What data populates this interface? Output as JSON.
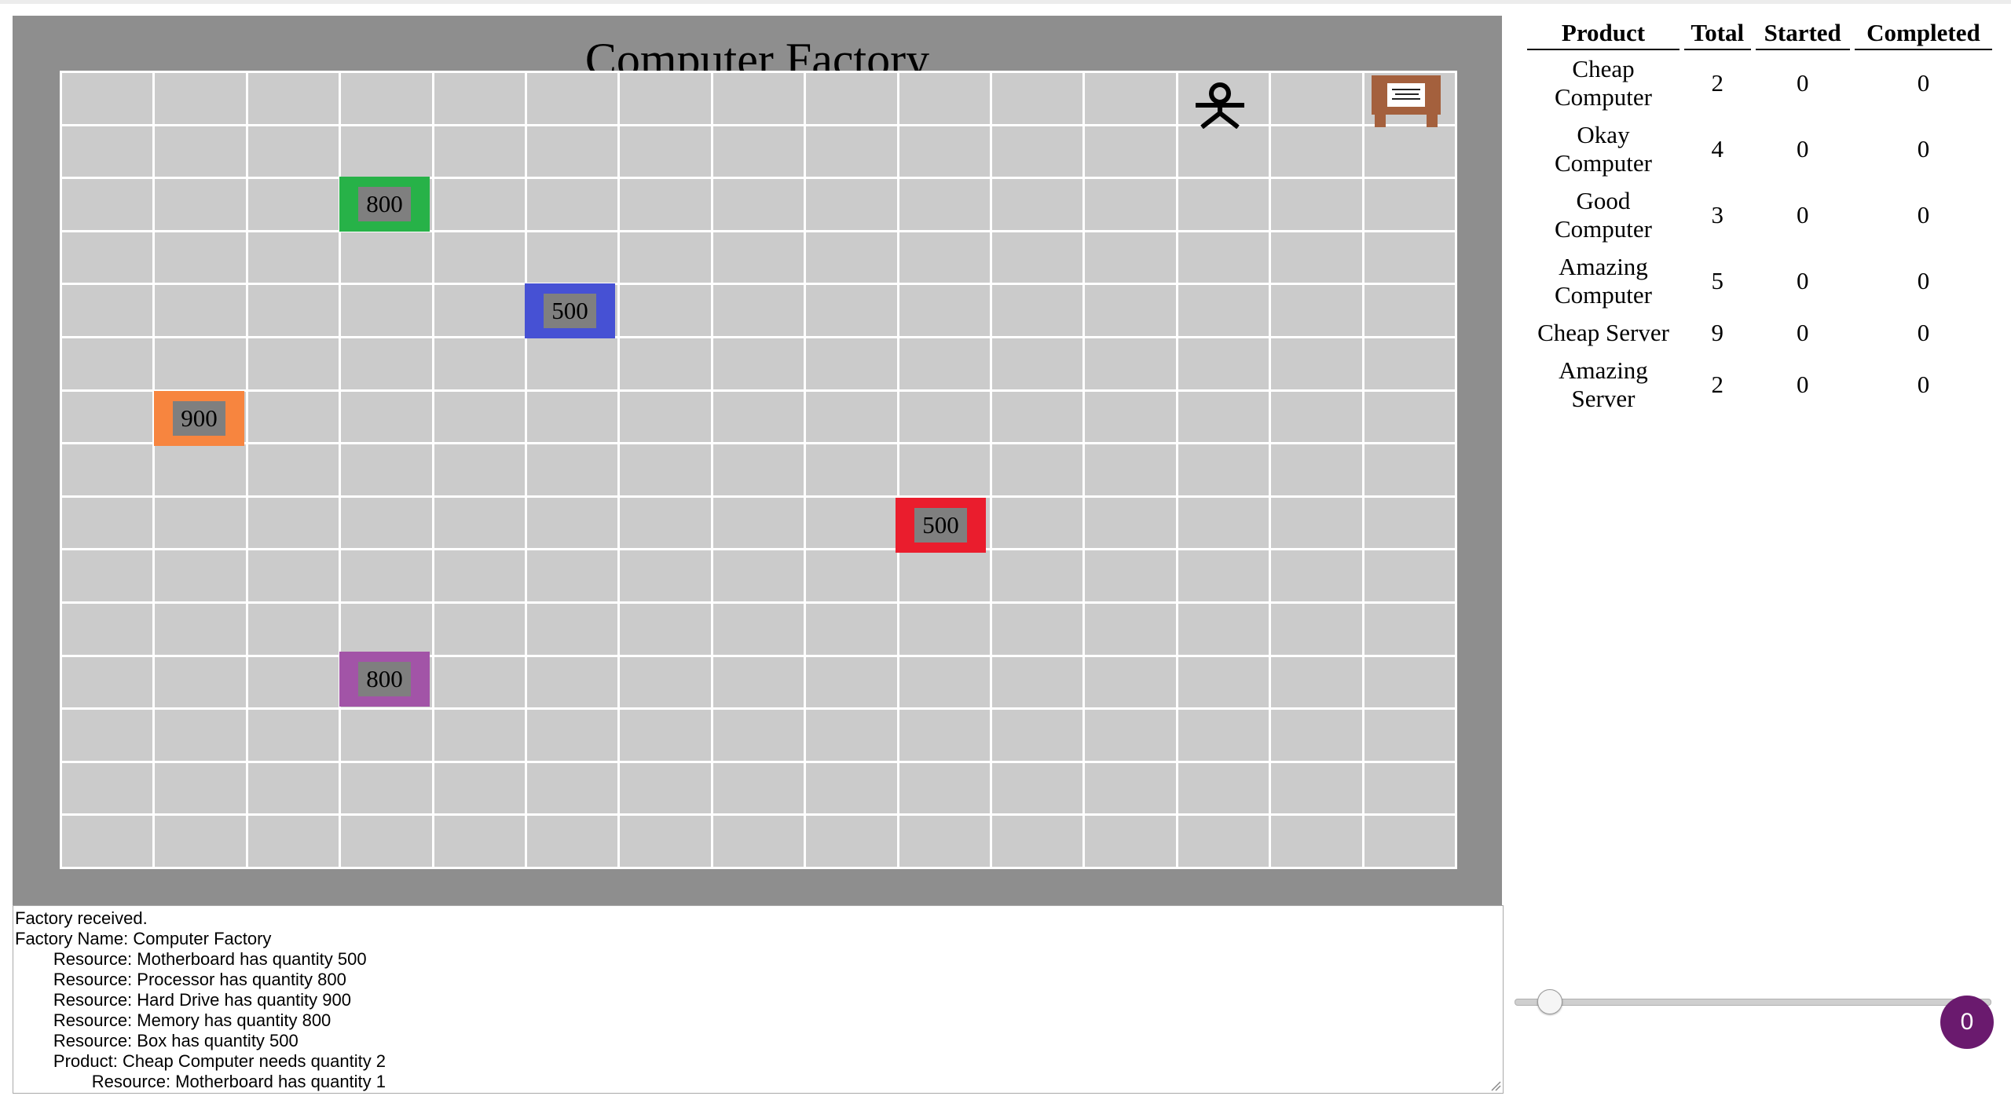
{
  "factory": {
    "title": "Computer Factory",
    "resources": [
      {
        "name": "processor",
        "quantity": "800",
        "color": "#27b248"
      },
      {
        "name": "motherboard",
        "quantity": "500",
        "color": "#4651d4"
      },
      {
        "name": "hard-drive",
        "quantity": "900",
        "color": "#f7853f"
      },
      {
        "name": "box",
        "quantity": "500",
        "color": "#ea1d2d"
      },
      {
        "name": "memory",
        "quantity": "800",
        "color": "#a254a7"
      }
    ],
    "icons": {
      "worker": "worker-icon",
      "board": "task-board-icon"
    }
  },
  "log": {
    "lines": [
      "Factory received.",
      "Factory Name: Computer Factory",
      "        Resource: Motherboard has quantity 500",
      "        Resource: Processor has quantity 800",
      "        Resource: Hard Drive has quantity 900",
      "        Resource: Memory has quantity 800",
      "        Resource: Box has quantity 500",
      "        Product: Cheap Computer needs quantity 2",
      "                Resource: Motherboard has quantity 1"
    ]
  },
  "table": {
    "headers": [
      "Product",
      "Total",
      "Started",
      "Completed"
    ],
    "rows": [
      {
        "product": "Cheap Computer",
        "total": "2",
        "started": "0",
        "completed": "0"
      },
      {
        "product": "Okay Computer",
        "total": "4",
        "started": "0",
        "completed": "0"
      },
      {
        "product": "Good Computer",
        "total": "3",
        "started": "0",
        "completed": "0"
      },
      {
        "product": "Amazing Computer",
        "total": "5",
        "started": "0",
        "completed": "0"
      },
      {
        "product": "Cheap Server",
        "total": "9",
        "started": "0",
        "completed": "0"
      },
      {
        "product": "Amazing Server",
        "total": "2",
        "started": "0",
        "completed": "0"
      }
    ]
  },
  "controls": {
    "slider_value": 0.05,
    "badge": "0"
  }
}
